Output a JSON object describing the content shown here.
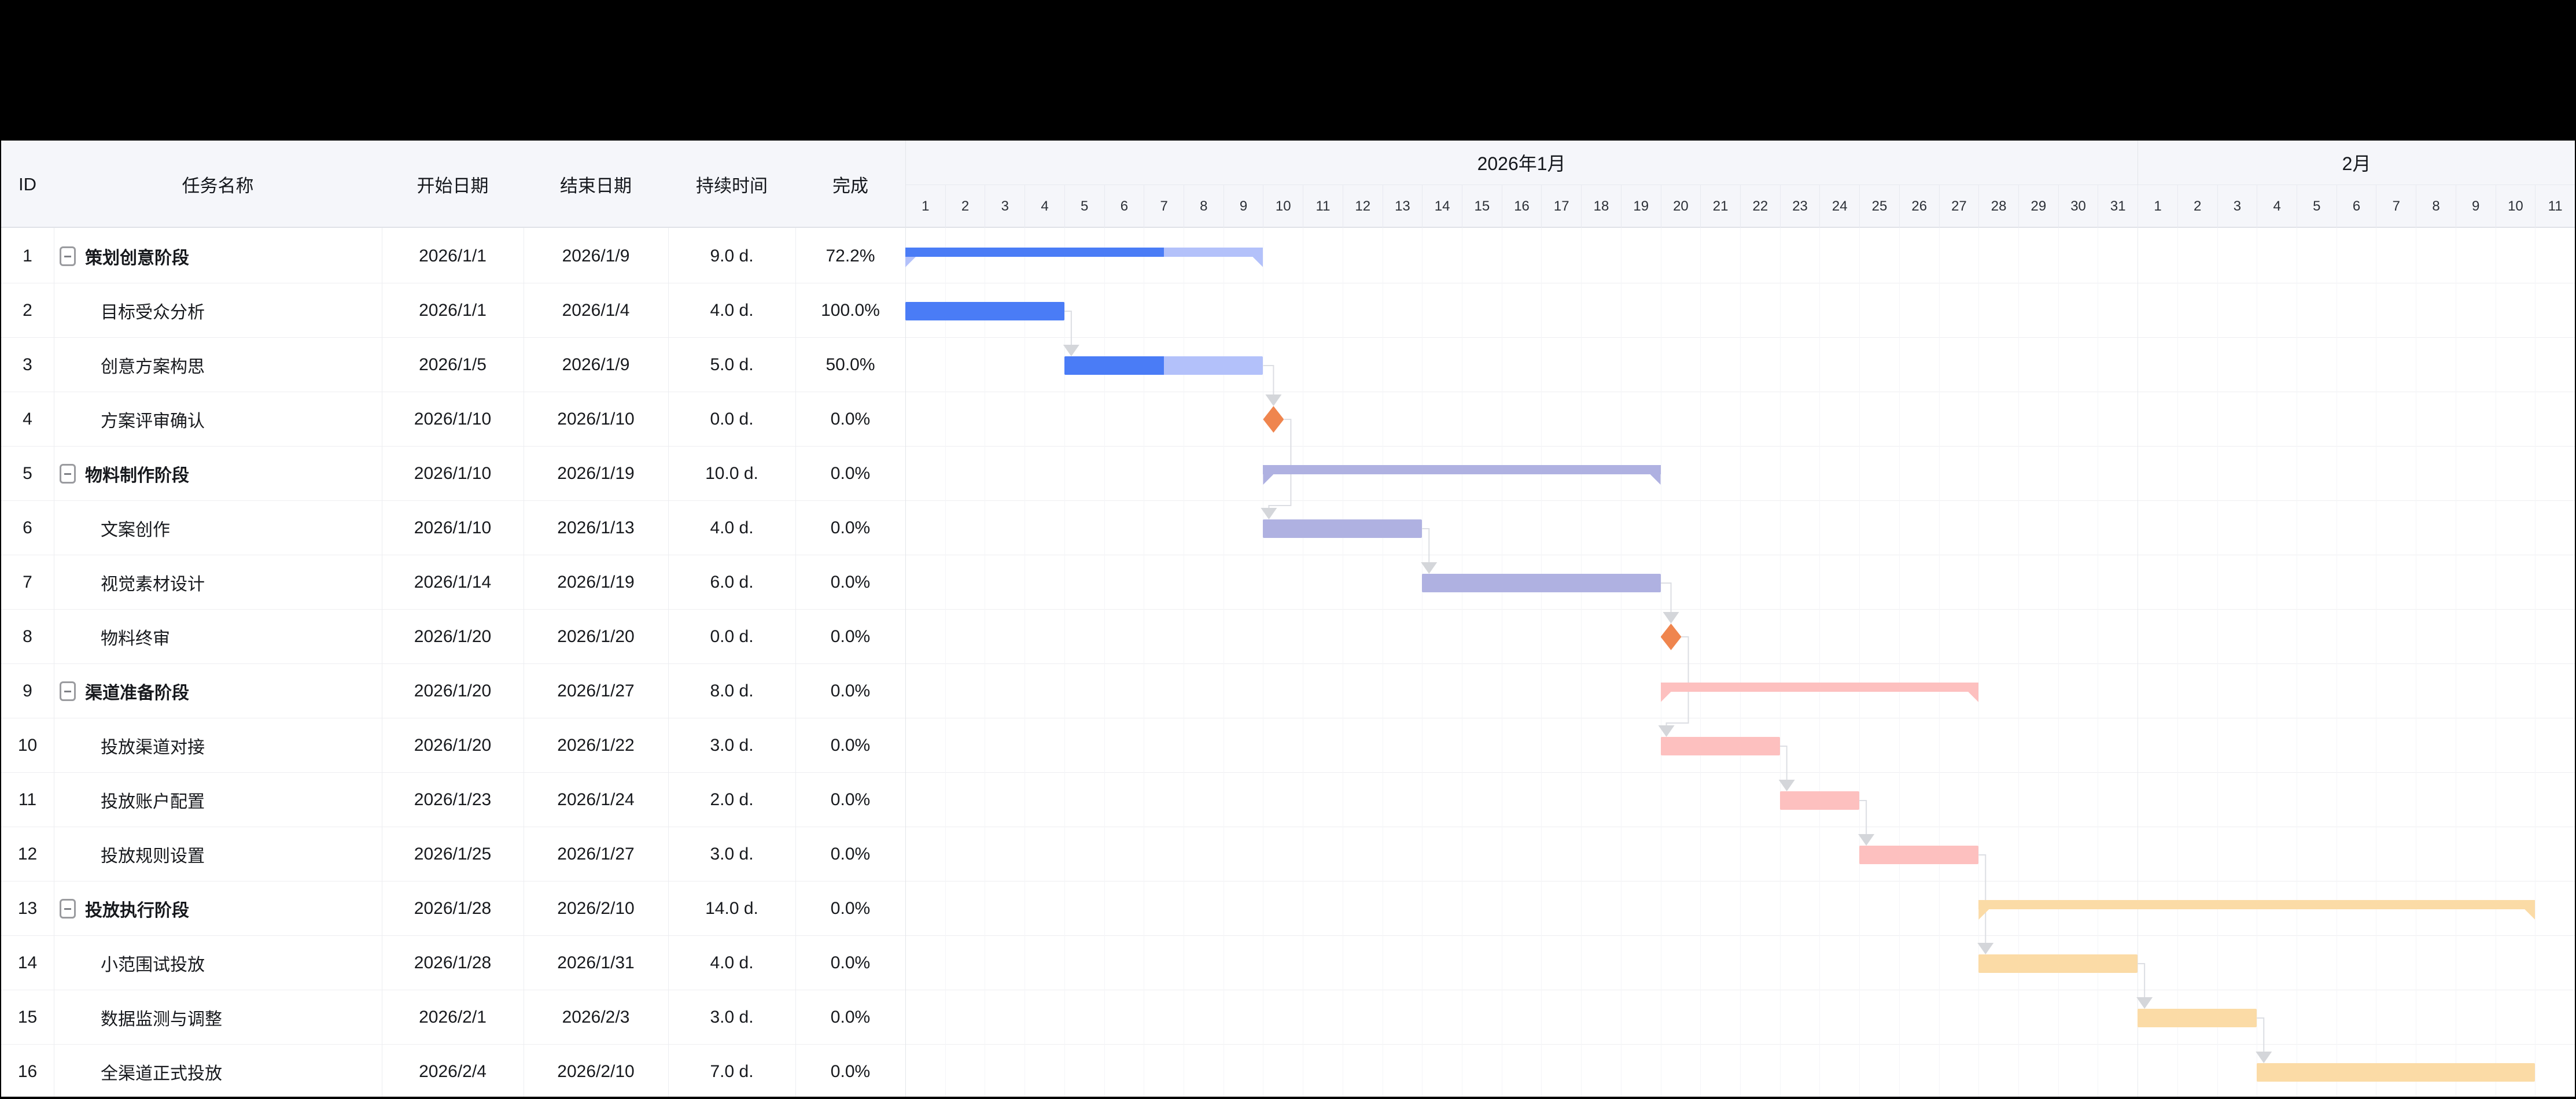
{
  "header": {
    "columns": [
      {
        "key": "id",
        "label": "ID"
      },
      {
        "key": "name",
        "label": "任务名称"
      },
      {
        "key": "start",
        "label": "开始日期"
      },
      {
        "key": "end",
        "label": "结束日期"
      },
      {
        "key": "duration",
        "label": "持续时间"
      },
      {
        "key": "percent",
        "label": "完成"
      }
    ]
  },
  "timeline": {
    "months": [
      {
        "label": "2026年1月",
        "days": [
          1,
          2,
          3,
          4,
          5,
          6,
          7,
          8,
          9,
          10,
          11,
          12,
          13,
          14,
          15,
          16,
          17,
          18,
          19,
          20,
          21,
          22,
          23,
          24,
          25,
          26,
          27,
          28,
          29,
          30,
          31
        ]
      },
      {
        "label": "2月",
        "days": [
          1,
          2,
          3,
          4,
          5,
          6,
          7,
          8,
          9,
          10,
          11
        ]
      }
    ]
  },
  "tasks": [
    {
      "id": 1,
      "name": "策划创意阶段",
      "type": "summary",
      "level": 0,
      "start": "2026/1/1",
      "end": "2026/1/9",
      "duration": "9.0 d.",
      "percent": "72.2%",
      "progress": 0.722,
      "startDay": 0,
      "endDay": 9,
      "colorGroup": "blue"
    },
    {
      "id": 2,
      "name": "目标受众分析",
      "type": "task",
      "level": 1,
      "start": "2026/1/1",
      "end": "2026/1/4",
      "duration": "4.0 d.",
      "percent": "100.0%",
      "progress": 1,
      "startDay": 0,
      "endDay": 4,
      "colorGroup": "blue"
    },
    {
      "id": 3,
      "name": "创意方案构思",
      "type": "task",
      "level": 1,
      "start": "2026/1/5",
      "end": "2026/1/9",
      "duration": "5.0 d.",
      "percent": "50.0%",
      "progress": 0.5,
      "startDay": 4,
      "endDay": 9,
      "colorGroup": "blue"
    },
    {
      "id": 4,
      "name": "方案评审确认",
      "type": "milestone",
      "level": 1,
      "start": "2026/1/10",
      "end": "2026/1/10",
      "duration": "0.0 d.",
      "percent": "0.0%",
      "progress": 0,
      "startDay": 9,
      "endDay": 9,
      "colorGroup": "milestone"
    },
    {
      "id": 5,
      "name": "物料制作阶段",
      "type": "summary",
      "level": 0,
      "start": "2026/1/10",
      "end": "2026/1/19",
      "duration": "10.0 d.",
      "percent": "0.0%",
      "progress": 0,
      "startDay": 9,
      "endDay": 19,
      "colorGroup": "purple"
    },
    {
      "id": 6,
      "name": "文案创作",
      "type": "task",
      "level": 1,
      "start": "2026/1/10",
      "end": "2026/1/13",
      "duration": "4.0 d.",
      "percent": "0.0%",
      "progress": 0,
      "startDay": 9,
      "endDay": 13,
      "colorGroup": "purple"
    },
    {
      "id": 7,
      "name": "视觉素材设计",
      "type": "task",
      "level": 1,
      "start": "2026/1/14",
      "end": "2026/1/19",
      "duration": "6.0 d.",
      "percent": "0.0%",
      "progress": 0,
      "startDay": 13,
      "endDay": 19,
      "colorGroup": "purple"
    },
    {
      "id": 8,
      "name": "物料终审",
      "type": "milestone",
      "level": 1,
      "start": "2026/1/20",
      "end": "2026/1/20",
      "duration": "0.0 d.",
      "percent": "0.0%",
      "progress": 0,
      "startDay": 19,
      "endDay": 19,
      "colorGroup": "milestone"
    },
    {
      "id": 9,
      "name": "渠道准备阶段",
      "type": "summary",
      "level": 0,
      "start": "2026/1/20",
      "end": "2026/1/27",
      "duration": "8.0 d.",
      "percent": "0.0%",
      "progress": 0,
      "startDay": 19,
      "endDay": 27,
      "colorGroup": "pink"
    },
    {
      "id": 10,
      "name": "投放渠道对接",
      "type": "task",
      "level": 1,
      "start": "2026/1/20",
      "end": "2026/1/22",
      "duration": "3.0 d.",
      "percent": "0.0%",
      "progress": 0,
      "startDay": 19,
      "endDay": 22,
      "colorGroup": "pink"
    },
    {
      "id": 11,
      "name": "投放账户配置",
      "type": "task",
      "level": 1,
      "start": "2026/1/23",
      "end": "2026/1/24",
      "duration": "2.0 d.",
      "percent": "0.0%",
      "progress": 0,
      "startDay": 22,
      "endDay": 24,
      "colorGroup": "pink"
    },
    {
      "id": 12,
      "name": "投放规则设置",
      "type": "task",
      "level": 1,
      "start": "2026/1/25",
      "end": "2026/1/27",
      "duration": "3.0 d.",
      "percent": "0.0%",
      "progress": 0,
      "startDay": 24,
      "endDay": 27,
      "colorGroup": "pink"
    },
    {
      "id": 13,
      "name": "投放执行阶段",
      "type": "summary",
      "level": 0,
      "start": "2026/1/28",
      "end": "2026/2/10",
      "duration": "14.0 d.",
      "percent": "0.0%",
      "progress": 0,
      "startDay": 27,
      "endDay": 41,
      "colorGroup": "amber"
    },
    {
      "id": 14,
      "name": "小范围试投放",
      "type": "task",
      "level": 1,
      "start": "2026/1/28",
      "end": "2026/1/31",
      "duration": "4.0 d.",
      "percent": "0.0%",
      "progress": 0,
      "startDay": 27,
      "endDay": 31,
      "colorGroup": "amber"
    },
    {
      "id": 15,
      "name": "数据监测与调整",
      "type": "task",
      "level": 1,
      "start": "2026/2/1",
      "end": "2026/2/3",
      "duration": "3.0 d.",
      "percent": "0.0%",
      "progress": 0,
      "startDay": 31,
      "endDay": 34,
      "colorGroup": "amber"
    },
    {
      "id": 16,
      "name": "全渠道正式投放",
      "type": "task",
      "level": 1,
      "start": "2026/2/4",
      "end": "2026/2/10",
      "duration": "7.0 d.",
      "percent": "0.0%",
      "progress": 0,
      "startDay": 34,
      "endDay": 41,
      "colorGroup": "amber"
    }
  ],
  "colors": {
    "blue": {
      "base": "#b3c1fa",
      "progress": "#4a7cf6"
    },
    "purple": {
      "base": "#afb1e1",
      "progress": "#8b8fd0"
    },
    "pink": {
      "base": "#fdc0bf",
      "progress": "#f2918f"
    },
    "amber": {
      "base": "#fbdba6",
      "progress": "#f2bc5e"
    },
    "milestone": "#ef854e",
    "connector_line": "#dcdee3",
    "connector_arrow": "#d4d6da"
  },
  "connectors": [
    [
      2,
      3
    ],
    [
      3,
      4
    ],
    [
      4,
      6
    ],
    [
      6,
      7
    ],
    [
      7,
      8
    ],
    [
      8,
      10
    ],
    [
      10,
      11
    ],
    [
      11,
      12
    ],
    [
      12,
      14
    ],
    [
      14,
      15
    ],
    [
      15,
      16
    ]
  ]
}
